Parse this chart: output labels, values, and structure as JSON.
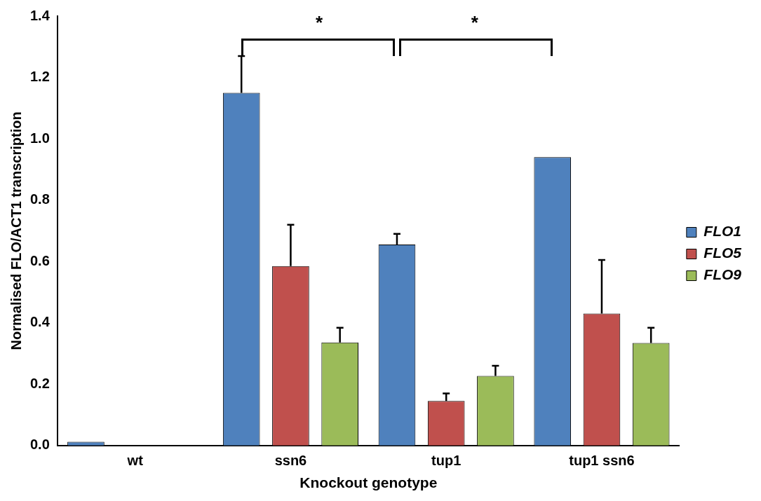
{
  "chart_data": {
    "type": "bar",
    "xlabel": "Knockout genotype",
    "ylabel": "Normalised FLO/ACT1 transcription",
    "categories": [
      "wt",
      "ssn6",
      "tup1",
      "tup1 ssn6"
    ],
    "series": [
      {
        "name": "FLO1",
        "color": "#4f81bd",
        "values": [
          0.012,
          1.15,
          0.655,
          0.94
        ],
        "errors": [
          null,
          0.12,
          0.035,
          null
        ]
      },
      {
        "name": "FLO5",
        "color": "#c0504d",
        "values": [
          null,
          0.585,
          0.145,
          0.43
        ],
        "errors": [
          null,
          0.135,
          0.025,
          0.175
        ]
      },
      {
        "name": "FLO9",
        "color": "#9bbb59",
        "values": [
          null,
          0.336,
          0.227,
          0.334
        ],
        "errors": [
          null,
          0.048,
          0.033,
          0.05
        ]
      }
    ],
    "ylim": [
      0,
      1.4
    ],
    "yticks": [
      {
        "value": 0,
        "label": "0.0"
      },
      0.2,
      0.4,
      0.6,
      0.8,
      {
        "value": 1,
        "label": "1.0"
      },
      1.2,
      1.4
    ],
    "grid": false,
    "legend": "right",
    "annotations": [
      "*",
      "*"
    ]
  }
}
